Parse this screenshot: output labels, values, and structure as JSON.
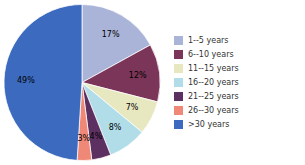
{
  "chart_data": {
    "type": "pie",
    "categories": [
      "1--5 years",
      "6--10 years",
      "11--15 years",
      "16--20 years",
      "21--25 years",
      "26--30 years",
      ">30 years"
    ],
    "values": [
      17,
      12,
      7,
      8,
      4,
      3,
      49
    ],
    "value_labels": [
      "17%",
      "12%",
      "7%",
      "8%",
      "4%",
      "3%",
      "49%"
    ],
    "colors": [
      "#aab4d8",
      "#7b3558",
      "#e8e8c0",
      "#b0dde8",
      "#5c3060",
      "#f08878",
      "#3b6abf"
    ],
    "data_labels": true,
    "legend": "right"
  }
}
